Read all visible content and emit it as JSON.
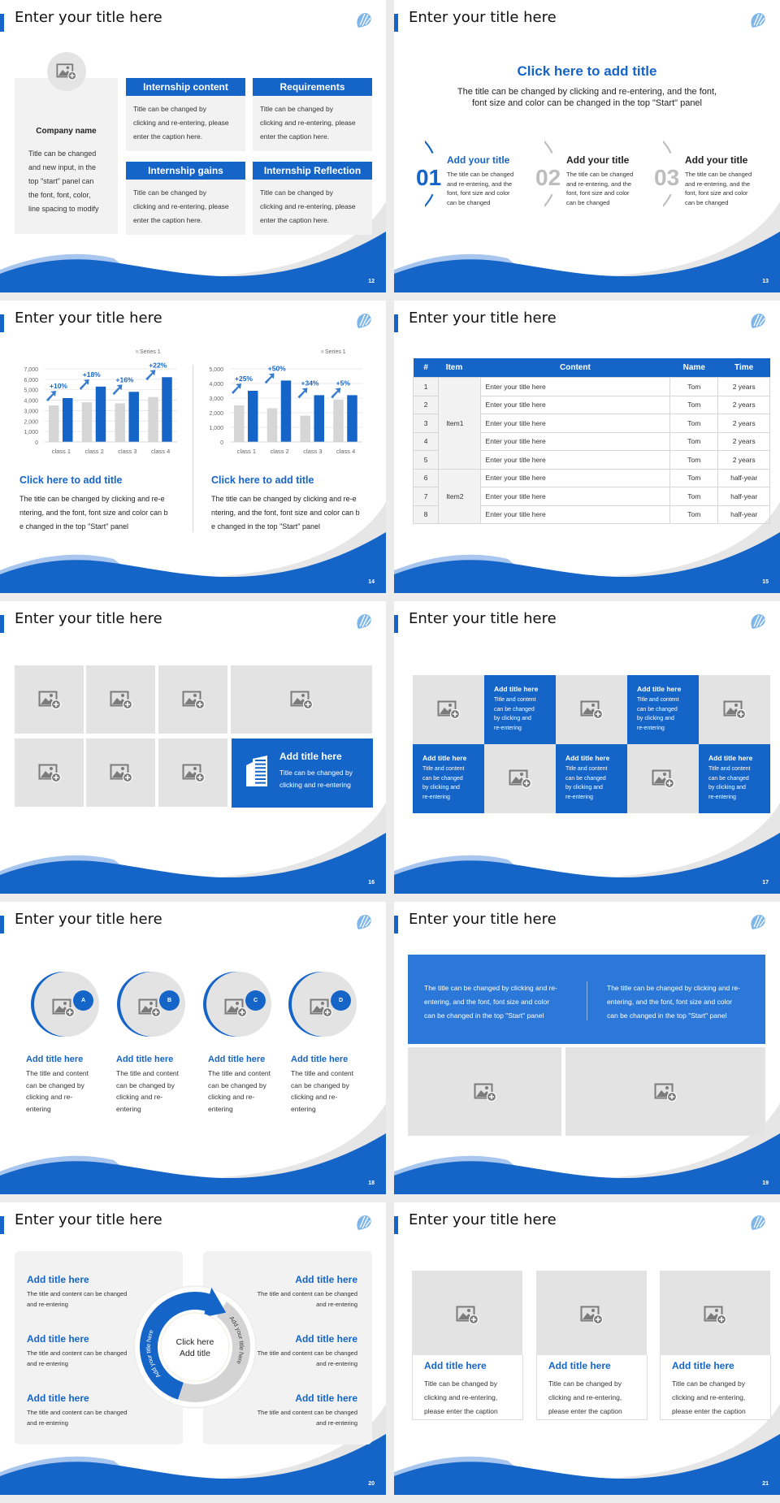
{
  "colors": {
    "primary": "#1565c8",
    "light_blue": "#a9c6ef",
    "panel": "#f2f2f2",
    "placeholder": "#e4e3e3",
    "gray_bar": "#d6d6d6",
    "gray_ring": "#bdbdbd"
  },
  "common": {
    "slide_title": "Enter your title here",
    "logo_icon": "leaf-stripes-logo",
    "image_icon": "image-add-icon"
  },
  "s12": {
    "page": "12",
    "company_name": "Company name",
    "company_text": [
      "Title can be changed",
      "and new input, in the",
      "top \"start\" panel can",
      "the font, font, color,",
      "line spacing to modify"
    ],
    "cards": [
      {
        "header": "Internship content",
        "body": [
          "Title can be changed by",
          "clicking and re-entering, please",
          "enter the caption here."
        ]
      },
      {
        "header": "Requirements",
        "body": [
          "Title can be changed by",
          "clicking and re-entering, please",
          "enter the caption here."
        ]
      },
      {
        "header": "Internship gains",
        "body": [
          "Title can be changed by",
          "clicking and re-entering, please",
          "enter the caption here."
        ]
      },
      {
        "header": "Internship Reflection",
        "body": [
          "Title can be changed by",
          "clicking and re-entering, please",
          "enter the caption here."
        ]
      }
    ]
  },
  "s13": {
    "page": "13",
    "heading": "Click here to add title",
    "subtitle": [
      "The title can be changed by clicking and re-entering, and the font,",
      "font size and color can be changed in the top \"Start\" panel"
    ],
    "steps": [
      {
        "num": "01",
        "title": "Add your title",
        "active": true,
        "body": [
          "The title can be changed",
          "and re-entering, and the",
          "font, font size and color",
          "can be changed"
        ]
      },
      {
        "num": "02",
        "title": "Add your title",
        "active": false,
        "body": [
          "The title can be changed",
          "and re-entering, and the",
          "font, font size and color",
          "can be changed"
        ]
      },
      {
        "num": "03",
        "title": "Add your title",
        "active": false,
        "body": [
          "The title can be changed",
          "and re-entering, and the",
          "font, font size and color",
          "can be changed"
        ]
      }
    ]
  },
  "s14": {
    "page": "14",
    "blocks": [
      {
        "title": "Click here to add title",
        "body": [
          "The title can be changed by clicking and re-e",
          "ntering, and the font, font size and color can b",
          "e changed in the top \"Start\" panel"
        ]
      },
      {
        "title": "Click here to add title",
        "body": [
          "The title can be changed by clicking and re-e",
          "ntering, and the font, font size and color can b",
          "e changed in the top \"Start\" panel"
        ]
      }
    ]
  },
  "chart_data": [
    {
      "type": "bar",
      "categories": [
        "class 1",
        "class 2",
        "class 3",
        "class 4"
      ],
      "series": [
        {
          "name": "Series 1",
          "color": "#d6d6d6",
          "values": [
            3500,
            3800,
            3700,
            4300
          ]
        },
        {
          "color": "#1565c8",
          "values": [
            4200,
            5300,
            4800,
            6200
          ]
        }
      ],
      "yticks": [
        "0",
        "1,000",
        "2,000",
        "3,000",
        "4,000",
        "5,000",
        "6,000",
        "7,000"
      ],
      "ylim": [
        0,
        7000
      ],
      "annotations": [
        "+10%",
        "+18%",
        "+16%",
        "+22%"
      ],
      "legend": "top-right",
      "grid": true
    },
    {
      "type": "bar",
      "categories": [
        "class 1",
        "class 2",
        "class 3",
        "class 4"
      ],
      "series": [
        {
          "name": "Series 1",
          "color": "#d6d6d6",
          "values": [
            2500,
            2300,
            1800,
            2900
          ]
        },
        {
          "color": "#1565c8",
          "values": [
            3500,
            4200,
            3200,
            3200
          ]
        }
      ],
      "yticks": [
        "0",
        "1,000",
        "2,000",
        "3,000",
        "4,000",
        "5,000"
      ],
      "ylim": [
        0,
        5000
      ],
      "annotations": [
        "+25%",
        "+50%",
        "+34%",
        "+5%"
      ],
      "legend": "top-right",
      "grid": true
    }
  ],
  "s15": {
    "page": "15",
    "headers": [
      "#",
      "Item",
      "Content",
      "Name",
      "Time"
    ],
    "rows": [
      [
        "1",
        "Enter your title here",
        "Tom",
        "2 years"
      ],
      [
        "2",
        "Enter your title here",
        "Tom",
        "2 years"
      ],
      [
        "3",
        "Enter your title here",
        "Tom",
        "2 years"
      ],
      [
        "4",
        "Enter your title here",
        "Tom",
        "2 years"
      ],
      [
        "5",
        "Enter your title here",
        "Tom",
        "2 years"
      ],
      [
        "6",
        "Enter your title here",
        "Tom",
        "half-year"
      ],
      [
        "7",
        "Enter your title here",
        "Tom",
        "half-year"
      ],
      [
        "8",
        "Enter your title here",
        "Tom",
        "half-year"
      ]
    ],
    "groups": [
      {
        "label": "Item1",
        "span": 5
      },
      {
        "label": "Item2",
        "span": 3
      }
    ]
  },
  "s16": {
    "page": "16",
    "feature": {
      "icon": "building-icon",
      "title": "Add title here",
      "body": [
        "Title can be changed by",
        "clicking and re-entering"
      ]
    }
  },
  "s17": {
    "page": "17",
    "tile": {
      "title": "Add title here",
      "body": [
        "Title and content",
        "can be changed",
        "by clicking and",
        "re-entering"
      ]
    }
  },
  "s18": {
    "page": "18",
    "items": [
      {
        "badge": "A",
        "title": "Add title here",
        "body": [
          "The title and content",
          "can be changed by",
          "clicking and re-",
          "entering"
        ]
      },
      {
        "badge": "B",
        "title": "Add title here",
        "body": [
          "The title and content",
          "can be changed by",
          "clicking and re-",
          "entering"
        ]
      },
      {
        "badge": "C",
        "title": "Add title here",
        "body": [
          "The title and content",
          "can be changed by",
          "clicking and re-",
          "entering"
        ]
      },
      {
        "badge": "D",
        "title": "Add title here",
        "body": [
          "The title and content",
          "can be changed by",
          "clicking and re-",
          "entering"
        ]
      }
    ]
  },
  "s19": {
    "page": "19",
    "texts": [
      [
        "The title can be changed by clicking and re-",
        "entering, and the font, font size and color",
        "can be changed in the top \"Start\" panel"
      ],
      [
        "The title can be changed by clicking and re-",
        "entering, and the font, font size and color",
        "can be changed in the top \"Start\" panel"
      ]
    ]
  },
  "s20": {
    "page": "20",
    "center": [
      "Click here",
      "Add title"
    ],
    "arc_left": "Add your title here",
    "arc_right": "Add your title here",
    "items": [
      {
        "title": "Add title here",
        "body": [
          "The title and content can be changed",
          "and re-entering"
        ]
      },
      {
        "title": "Add title here",
        "body": [
          "The title and content can be changed",
          "and re-entering"
        ]
      },
      {
        "title": "Add title here",
        "body": [
          "The title and content can be changed",
          "and re-entering"
        ]
      },
      {
        "title": "Add title here",
        "body": [
          "The title and content can be changed",
          "and re-entering"
        ]
      },
      {
        "title": "Add title here",
        "body": [
          "The title and content can be changed",
          "and re-entering"
        ]
      },
      {
        "title": "Add title here",
        "body": [
          "The title and content can be changed",
          "and re-entering"
        ]
      }
    ]
  },
  "s21": {
    "page": "21",
    "cards": [
      {
        "title": "Add title here",
        "body": [
          "Title can be changed by",
          "clicking and re-entering,",
          "please enter the caption"
        ]
      },
      {
        "title": "Add title here",
        "body": [
          "Title can be changed by",
          "clicking and re-entering,",
          "please enter the caption"
        ]
      },
      {
        "title": "Add title here",
        "body": [
          "Title can be changed by",
          "clicking and re-entering,",
          "please enter the caption"
        ]
      }
    ]
  }
}
